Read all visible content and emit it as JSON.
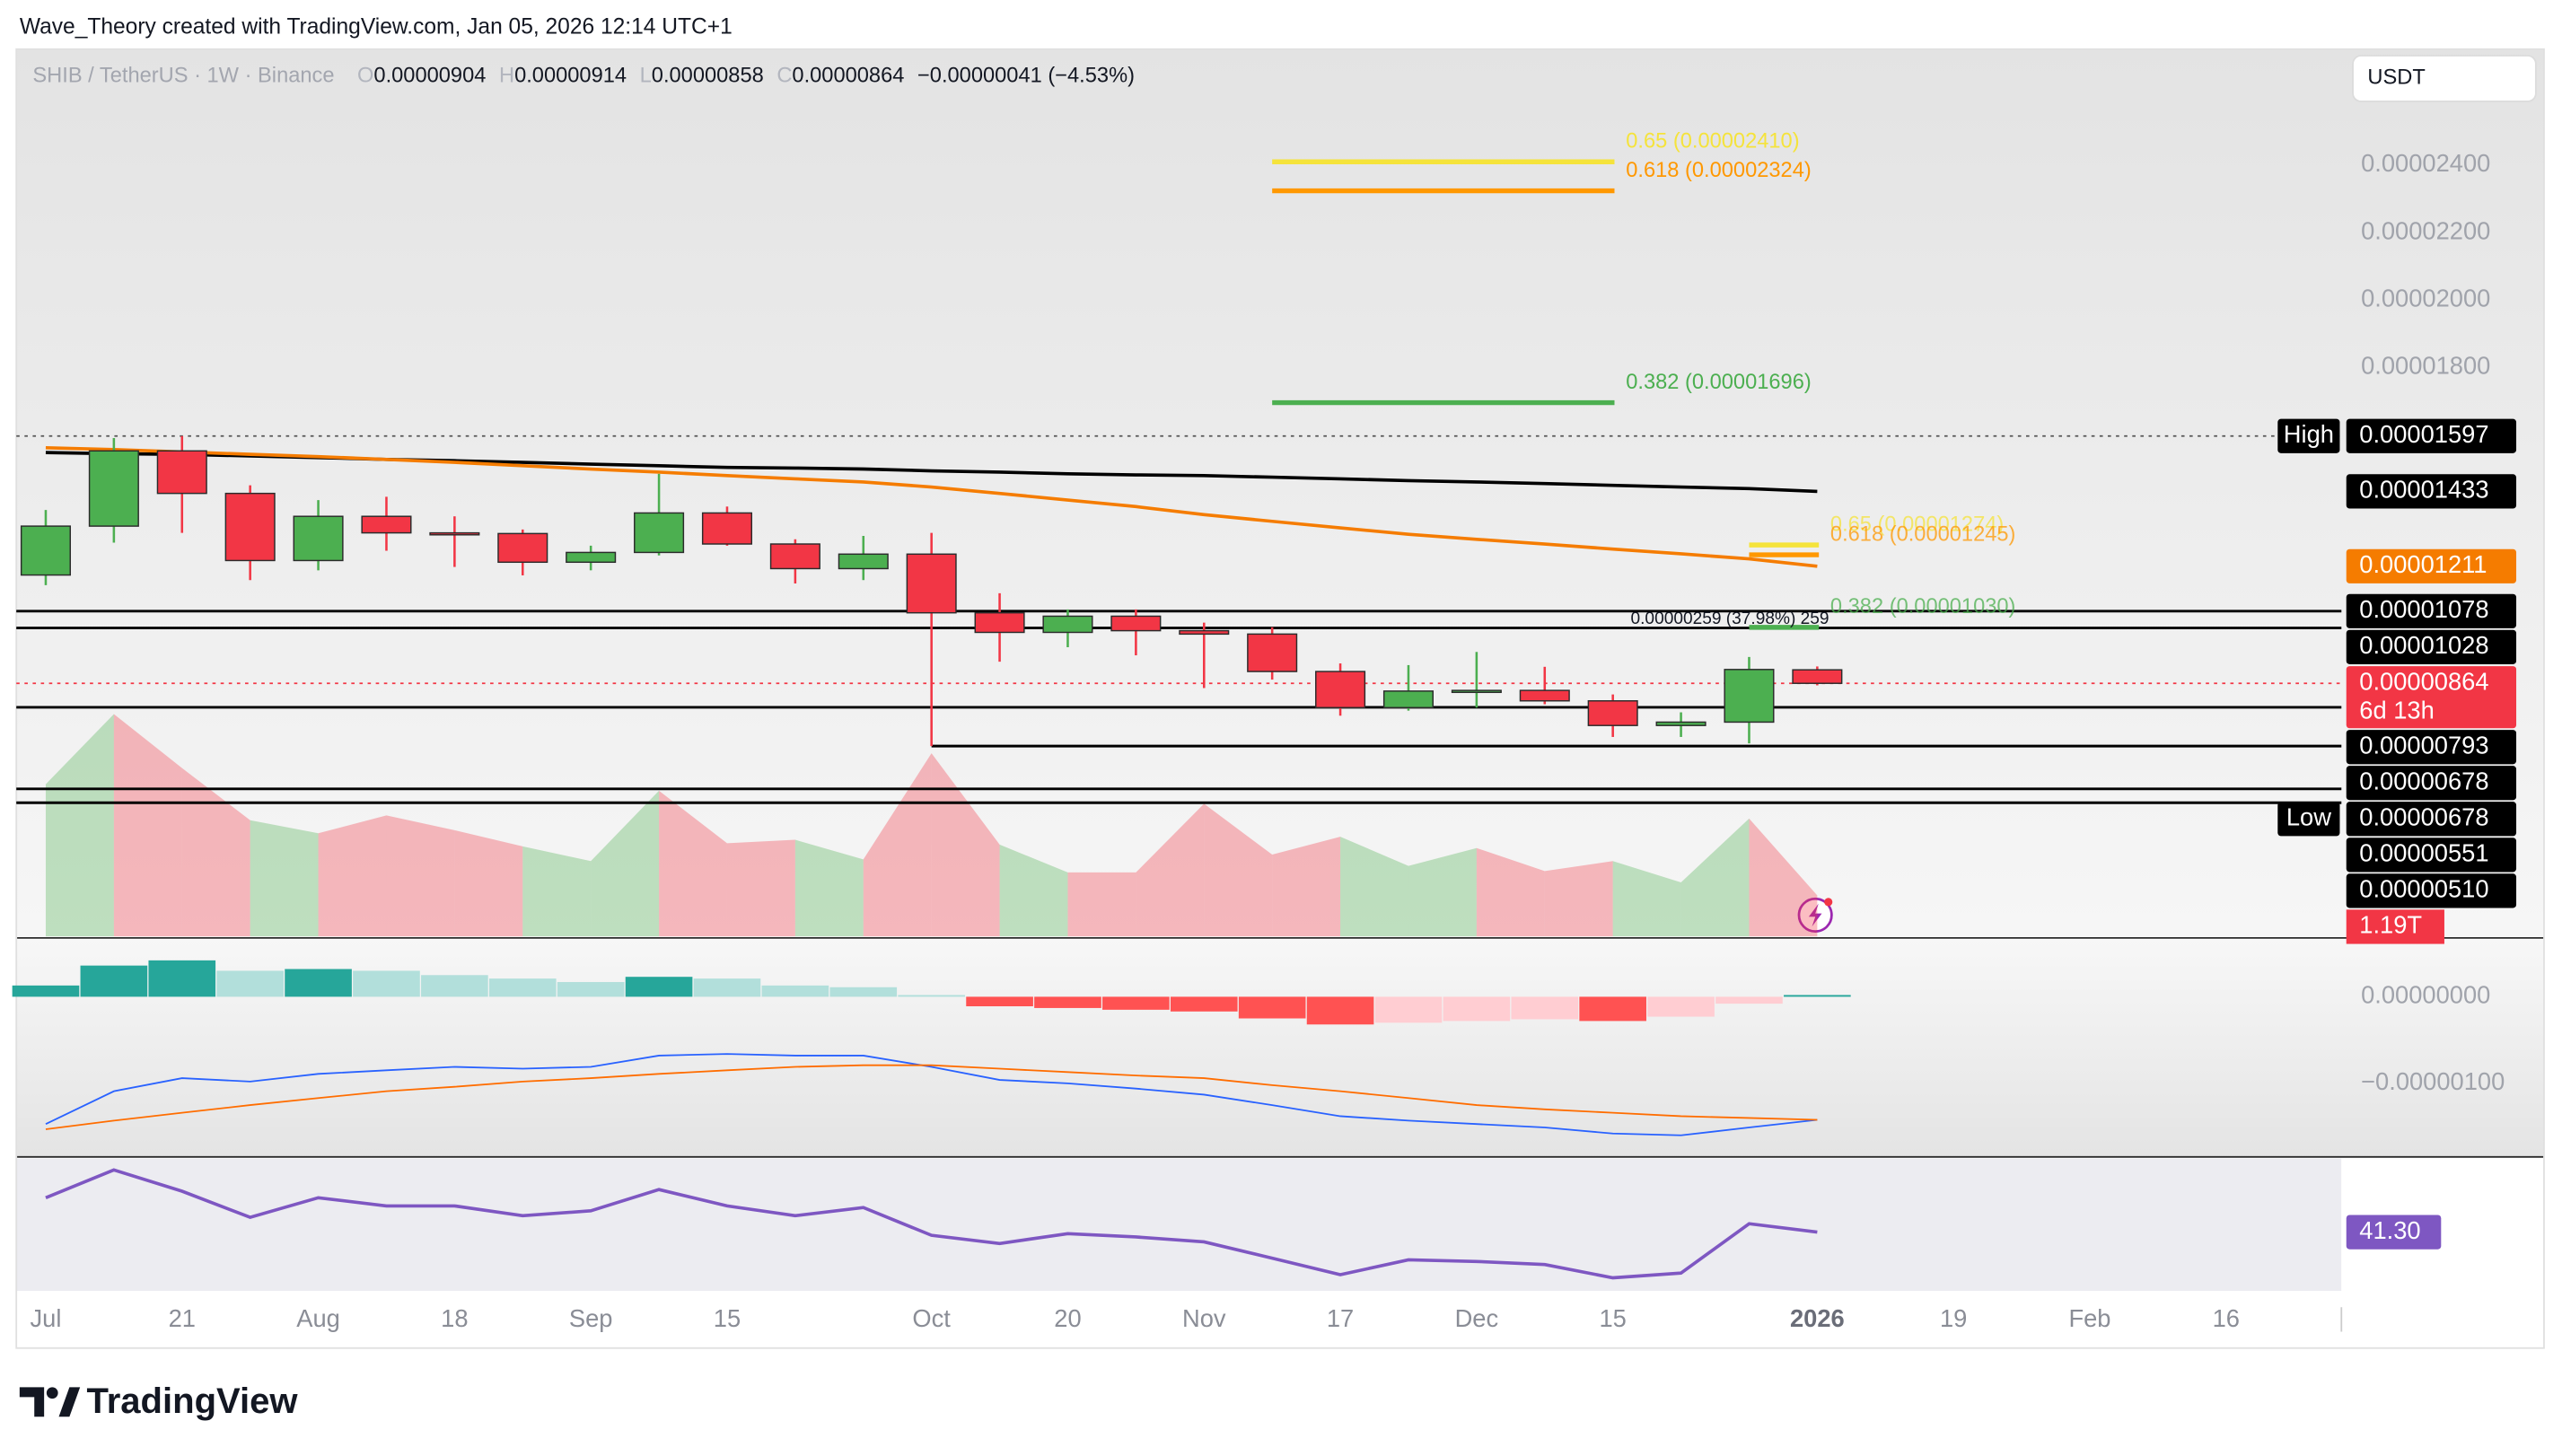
{
  "chart_data": {
    "type": "candlestick",
    "attribution": "Wave_Theory created with TradingView.com, Jan 05, 2026 12:14 UTC+1",
    "title": "SHIB / TetherUS · 1W · Binance",
    "header_values": [
      {
        "key": "O",
        "text": "0.00000904"
      },
      {
        "key": "H",
        "text": "0.00000914"
      },
      {
        "key": "L",
        "text": "0.00000858"
      },
      {
        "key": "C",
        "text": "0.00000864"
      }
    ],
    "change": "−0.00000041 (−4.53%)",
    "currency": "USDT",
    "brand": "TradingView",
    "categories": [
      "Jul",
      null,
      "21",
      null,
      "Aug",
      null,
      "18",
      null,
      "Sep",
      null,
      "15",
      null,
      null,
      "Oct",
      null,
      "20",
      null,
      "Nov",
      null,
      "17",
      null,
      "Dec",
      null,
      "15",
      null,
      null,
      "2026",
      null,
      "19",
      null,
      "Feb",
      null,
      "16"
    ],
    "up_color": "#4caf50",
    "down_color": "#f23645",
    "ohlc": {
      "open": [
        1.185e-05,
        1.33e-05,
        1.553e-05,
        1.427e-05,
        1.228e-05,
        1.359e-05,
        1.31e-05,
        1.308e-05,
        1.223e-05,
        1.252e-05,
        1.369e-05,
        1.277e-05,
        1.204e-05,
        1.247e-05,
        1.073e-05,
        1.015e-05,
        1.063e-05,
        1.02e-05,
        1.01e-05,
        8.99e-06,
        7.92e-06,
        8.41e-06,
        8.43e-06,
        8.12e-06,
        7.39e-06,
        7.49e-06,
        9.04e-06,
        null,
        null,
        null,
        null,
        null,
        null
      ],
      "high": [
        1.378e-05,
        1.591e-05,
        1.597e-05,
        1.451e-05,
        1.407e-05,
        1.417e-05,
        1.359e-05,
        1.32e-05,
        1.272e-05,
        1.485e-05,
        1.388e-05,
        1.291e-05,
        1.301e-05,
        1.31e-05,
        1.131e-05,
        1.083e-05,
        1.083e-05,
        1.044e-05,
        1.03e-05,
        9.23e-06,
        9.18e-06,
        9.57e-06,
        9.13e-06,
        8.31e-06,
        7.78e-06,
        9.42e-06,
        9.14e-06,
        null,
        null,
        null,
        null,
        null,
        null
      ],
      "low": [
        1.155e-05,
        1.281e-05,
        1.31e-05,
        1.17e-05,
        1.199e-05,
        1.257e-05,
        1.209e-05,
        1.184e-05,
        1.199e-05,
        1.243e-05,
        1.272e-05,
        1.16e-05,
        1.17e-05,
        6.78e-06,
        9.28e-06,
        9.71e-06,
        9.47e-06,
        8.5e-06,
        8.75e-06,
        7.68e-06,
        7.83e-06,
        7.92e-06,
        8.02e-06,
        7.05e-06,
        7.05e-06,
        6.86e-06,
        8.58e-06,
        null,
        null,
        null,
        null,
        null,
        null
      ],
      "close": [
        1.33e-05,
        1.553e-05,
        1.427e-05,
        1.228e-05,
        1.359e-05,
        1.31e-05,
        1.308e-05,
        1.223e-05,
        1.252e-05,
        1.369e-05,
        1.277e-05,
        1.204e-05,
        1.247e-05,
        1.073e-05,
        1.015e-05,
        1.063e-05,
        1.02e-05,
        1.01e-05,
        8.99e-06,
        7.92e-06,
        8.41e-06,
        8.43e-06,
        8.12e-06,
        7.39e-06,
        7.49e-06,
        9.05e-06,
        8.64e-06,
        null,
        null,
        null,
        null,
        null,
        null
      ]
    },
    "moving_averages": [
      {
        "color": "#000000",
        "values": [
          1.548e-05,
          1.545e-05,
          1.543e-05,
          1.538e-05,
          1.533e-05,
          1.528e-05,
          1.524e-05,
          1.519e-05,
          1.514e-05,
          1.509e-05,
          1.504e-05,
          1.502e-05,
          1.499e-05,
          1.494e-05,
          1.49e-05,
          1.485e-05,
          1.482e-05,
          1.48e-05,
          1.475e-05,
          1.47e-05,
          1.465e-05,
          1.461e-05,
          1.456e-05,
          1.451e-05,
          1.446e-05,
          1.441e-05,
          1.433e-05,
          null,
          null,
          null,
          null,
          null,
          null
        ]
      },
      {
        "color": "#f57c00",
        "values": [
          1.562e-05,
          1.557e-05,
          1.55e-05,
          1.543e-05,
          1.536e-05,
          1.528e-05,
          1.519e-05,
          1.509e-05,
          1.499e-05,
          1.49e-05,
          1.48e-05,
          1.47e-05,
          1.461e-05,
          1.446e-05,
          1.427e-05,
          1.407e-05,
          1.388e-05,
          1.364e-05,
          1.344e-05,
          1.325e-05,
          1.306e-05,
          1.291e-05,
          1.277e-05,
          1.262e-05,
          1.248e-05,
          1.233e-05,
          1.211e-05,
          null,
          null,
          null,
          null,
          null,
          null
        ]
      }
    ],
    "ylim": [
      1.14e-06,
      2.744e-05
    ],
    "yticks": [
      {
        "value": 2.4e-05,
        "label": "0.00002400"
      },
      {
        "value": 2.2e-05,
        "label": "0.00002200"
      },
      {
        "value": 2e-05,
        "label": "0.00002000"
      },
      {
        "value": 1.8e-05,
        "label": "0.00001800"
      }
    ],
    "hlines": [
      {
        "value": 1.597e-05,
        "color": "#555555",
        "dashed": true
      },
      {
        "value": 1.078e-05,
        "color": "#000000",
        "dashed": false
      },
      {
        "value": 1.028e-05,
        "color": "#000000",
        "dashed": false
      },
      {
        "value": 8.64e-06,
        "color": "#f23645",
        "dashed": true
      },
      {
        "value": 7.93e-06,
        "color": "#000000",
        "dashed": false
      },
      {
        "value": 6.78e-06,
        "color": "#000000",
        "dashed": false
      },
      {
        "value": 5.51e-06,
        "color": "#000000",
        "dashed": false
      },
      {
        "value": 5.1e-06,
        "color": "#000000",
        "dashed": false
      }
    ],
    "fib_levels": [
      {
        "label": "0.65 (0.00002410)",
        "value": 2.41e-05,
        "color": "#f5e33b"
      },
      {
        "label": "0.618 (0.00002324)",
        "value": 2.324e-05,
        "color": "#ff9800"
      },
      {
        "label": "0.382 (0.00001696)",
        "value": 1.696e-05,
        "color": "#4caf50"
      },
      {
        "label": "0.65 (0.00001274)",
        "value": 1.274e-05,
        "color": "#f5e33b"
      },
      {
        "label": "0.618 (0.00001245)",
        "value": 1.245e-05,
        "color": "#ff9800"
      },
      {
        "label": "0.382 (0.00001030)",
        "value": 1.03e-05,
        "color": "#4caf50"
      }
    ],
    "measure": "0.00000259 (37.98%) 259",
    "price_labels": [
      {
        "label": "0.00001597",
        "value": 1.597e-05,
        "color": "#000000",
        "tag": "High"
      },
      {
        "label": "0.00001433",
        "value": 1.433e-05,
        "color": "#000000"
      },
      {
        "label": "0.00001211",
        "value": 1.211e-05,
        "color": "#f57c00"
      },
      {
        "label": "0.00001078",
        "value": 1.078e-05,
        "color": "#000000"
      },
      {
        "label": "0.00001028",
        "value": 1.028e-05,
        "color": "#000000"
      },
      {
        "label": "0.00000864",
        "value": 8.64e-06,
        "color": "#f23645",
        "countdown": "6d 13h"
      },
      {
        "label": "0.00000793",
        "value": 7.93e-06,
        "color": "#000000"
      },
      {
        "label": "0.00000678",
        "value": 6.78e-06,
        "color": "#000000"
      },
      {
        "label": "0.00000678",
        "value": 6.78e-06,
        "color": "#000000",
        "tag": "Low"
      },
      {
        "label": "0.00000551",
        "value": 5.51e-06,
        "color": "#000000"
      },
      {
        "label": "0.00000510",
        "value": 5.1e-06,
        "color": "#000000"
      }
    ],
    "volume": {
      "values": [
        4430000000000.0,
        6470000000000.0,
        4900000000000.0,
        3380000000000.0,
        3000000000000.0,
        3520000000000.0,
        3090000000000.0,
        2620000000000.0,
        2190000000000.0,
        4240000000000.0,
        2710000000000.0,
        2810000000000.0,
        2240000000000.0,
        5330000000000.0,
        2670000000000.0,
        1860000000000.0,
        1860000000000.0,
        3860000000000.0,
        2380000000000.0,
        2900000000000.0,
        2050000000000.0,
        2570000000000.0,
        1900000000000.0,
        2190000000000.0,
        1570000000000.0,
        3430000000000.0,
        1190000000000.0,
        null,
        null,
        null,
        null,
        null,
        null
      ],
      "value_labels": [
        null,
        null,
        null,
        null,
        null,
        null,
        null,
        null,
        null,
        null,
        null,
        null,
        null,
        null,
        null,
        null,
        null,
        null,
        null,
        null,
        null,
        null,
        null,
        null,
        null,
        null,
        "1.19T",
        null,
        null,
        null,
        null,
        null,
        null
      ]
    },
    "macd": {
      "histogram": [
        1.3e-07,
        3.6e-07,
        4.2e-07,
        3e-07,
        3.2e-07,
        3e-07,
        2.5e-07,
        2.1e-07,
        1.7e-07,
        2.3e-07,
        2.1e-07,
        1.3e-07,
        1.1e-07,
        2e-08,
        -1.1e-07,
        -1.3e-07,
        -1.5e-07,
        -1.7e-07,
        -2.5e-07,
        -3.2e-07,
        -3e-07,
        -2.8e-07,
        -2.6e-07,
        -2.8e-07,
        -2.3e-07,
        -8e-08,
        2e-08,
        null,
        null,
        null,
        null,
        null,
        null
      ],
      "macd": [
        -1.47e-06,
        -1.09e-06,
        -9.4e-07,
        -9.8e-07,
        -8.9e-07,
        -8.5e-07,
        -8.1e-07,
        -8.3e-07,
        -8.1e-07,
        -6.8e-07,
        -6.6e-07,
        -6.8e-07,
        -6.8e-07,
        -8.1e-07,
        -9.6e-07,
        -1e-06,
        -1.06e-06,
        -1.13e-06,
        -1.25e-06,
        -1.38e-06,
        -1.43e-06,
        -1.47e-06,
        -1.51e-06,
        -1.58e-06,
        -1.6e-06,
        -1.51e-06,
        -1.42e-06,
        null,
        null,
        null,
        null,
        null,
        null
      ],
      "signal": [
        -1.53e-06,
        -1.43e-06,
        -1.34e-06,
        -1.25e-06,
        -1.17e-06,
        -1.09e-06,
        -1.04e-06,
        -9.8e-07,
        -9.4e-07,
        -8.9e-07,
        -8.5e-07,
        -8.1e-07,
        -7.9e-07,
        -7.9e-07,
        -8.3e-07,
        -8.7e-07,
        -9.1e-07,
        -9.4e-07,
        -1.02e-06,
        -1.09e-06,
        -1.17e-06,
        -1.25e-06,
        -1.3e-06,
        -1.34e-06,
        -1.38e-06,
        -1.4e-06,
        -1.42e-06,
        null,
        null,
        null,
        null,
        null,
        null
      ],
      "macd_color": "#2962ff",
      "signal_color": "#ff6d00",
      "ylim": [
        -1.83e-06,
        6.6e-07
      ],
      "yticks": [
        {
          "value": 0,
          "label": "0.00000000"
        },
        {
          "value": -1e-06,
          "label": "−0.00000100"
        }
      ]
    },
    "rsi": {
      "values": [
        56.1,
        68.1,
        58.9,
        47.7,
        56.1,
        52.6,
        52.6,
        48.4,
        50.5,
        59.6,
        52.6,
        48.4,
        51.9,
        39.9,
        36.4,
        40.6,
        39.2,
        37.1,
        30.1,
        23.0,
        29.4,
        28.7,
        27.3,
        21.6,
        23.7,
        44.9,
        41.3,
        null,
        null,
        null,
        null,
        null,
        null
      ],
      "value_labels": [
        null,
        null,
        null,
        null,
        null,
        null,
        null,
        null,
        null,
        null,
        null,
        null,
        null,
        null,
        null,
        null,
        null,
        null,
        null,
        null,
        null,
        null,
        null,
        null,
        null,
        null,
        "41.30",
        null,
        null,
        null,
        null,
        null,
        null
      ],
      "color": "#7e57c2",
      "ylim": [
        16,
        73
      ]
    }
  }
}
